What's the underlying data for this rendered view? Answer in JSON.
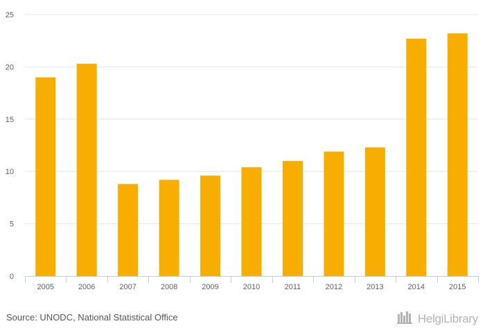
{
  "chart_data": {
    "type": "bar",
    "categories": [
      "2005",
      "2006",
      "2007",
      "2008",
      "2009",
      "2010",
      "2011",
      "2012",
      "2013",
      "2014",
      "2015"
    ],
    "values": [
      19.0,
      20.3,
      8.8,
      9.2,
      9.6,
      10.4,
      11.0,
      11.9,
      12.3,
      22.7,
      23.2
    ],
    "yticks": [
      "0",
      "5",
      "10",
      "15",
      "20",
      "25"
    ],
    "ylim": [
      0,
      25
    ],
    "grid": true,
    "bar_color": "#f7ae00",
    "grid_color": "#e6e6e6",
    "axis_color": "#c0d0e0"
  },
  "footer": {
    "source": "Source: UNODC, National Statistical Office",
    "brand_name": "HelgiLibrary",
    "brand_icon": "library-books-icon"
  }
}
